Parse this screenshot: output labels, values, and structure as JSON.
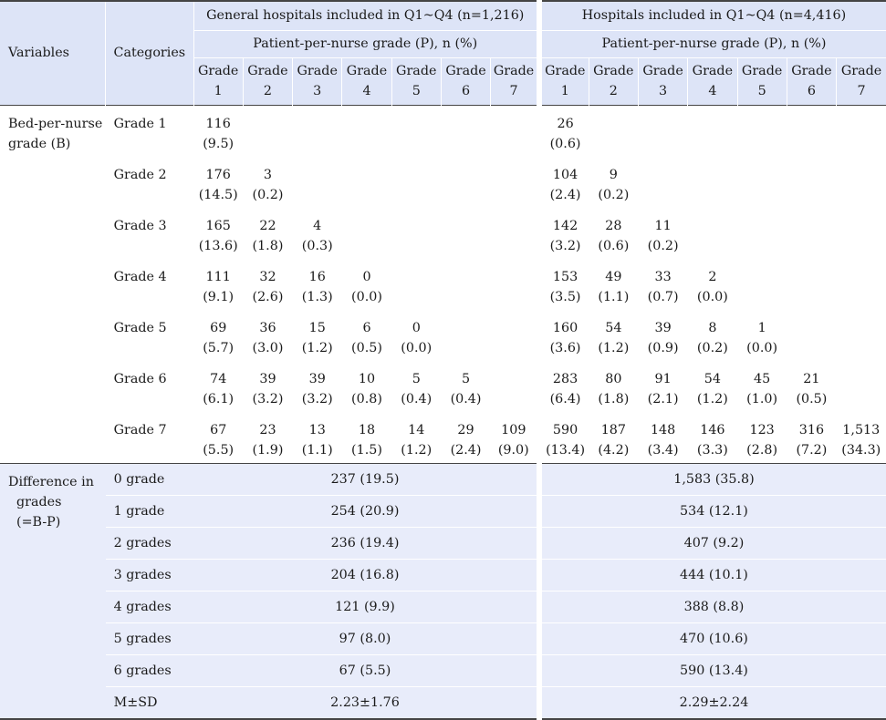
{
  "header": {
    "variables": "Variables",
    "categories": "Categories",
    "group1_title": "General hospitals included in Q1~Q4 (n=1,216)",
    "group2_title": "Hospitals included in Q1~Q4 (n=4,416)",
    "sub_title": "Patient-per-nurse grade (P), n (%)",
    "grade_word": "Grade",
    "grade_numbers": [
      "1",
      "2",
      "3",
      "4",
      "5",
      "6",
      "7"
    ]
  },
  "bed_section": {
    "variable": "Bed-per-nurse grade (B)",
    "rows": [
      {
        "category": "Grade 1",
        "g1": [
          [
            "116",
            "(9.5)"
          ]
        ],
        "g2": [
          [
            "26",
            "(0.6)"
          ]
        ]
      },
      {
        "category": "Grade 2",
        "g1": [
          [
            "176",
            "(14.5)"
          ],
          [
            "3",
            "(0.2)"
          ]
        ],
        "g2": [
          [
            "104",
            "(2.4)"
          ],
          [
            "9",
            "(0.2)"
          ]
        ]
      },
      {
        "category": "Grade 3",
        "g1": [
          [
            "165",
            "(13.6)"
          ],
          [
            "22",
            "(1.8)"
          ],
          [
            "4",
            "(0.3)"
          ]
        ],
        "g2": [
          [
            "142",
            "(3.2)"
          ],
          [
            "28",
            "(0.6)"
          ],
          [
            "11",
            "(0.2)"
          ]
        ]
      },
      {
        "category": "Grade 4",
        "g1": [
          [
            "111",
            "(9.1)"
          ],
          [
            "32",
            "(2.6)"
          ],
          [
            "16",
            "(1.3)"
          ],
          [
            "0",
            "(0.0)"
          ]
        ],
        "g2": [
          [
            "153",
            "(3.5)"
          ],
          [
            "49",
            "(1.1)"
          ],
          [
            "33",
            "(0.7)"
          ],
          [
            "2",
            "(0.0)"
          ]
        ]
      },
      {
        "category": "Grade 5",
        "g1": [
          [
            "69",
            "(5.7)"
          ],
          [
            "36",
            "(3.0)"
          ],
          [
            "15",
            "(1.2)"
          ],
          [
            "6",
            "(0.5)"
          ],
          [
            "0",
            "(0.0)"
          ]
        ],
        "g2": [
          [
            "160",
            "(3.6)"
          ],
          [
            "54",
            "(1.2)"
          ],
          [
            "39",
            "(0.9)"
          ],
          [
            "8",
            "(0.2)"
          ],
          [
            "1",
            "(0.0)"
          ]
        ]
      },
      {
        "category": "Grade 6",
        "g1": [
          [
            "74",
            "(6.1)"
          ],
          [
            "39",
            "(3.2)"
          ],
          [
            "39",
            "(3.2)"
          ],
          [
            "10",
            "(0.8)"
          ],
          [
            "5",
            "(0.4)"
          ],
          [
            "5",
            "(0.4)"
          ]
        ],
        "g2": [
          [
            "283",
            "(6.4)"
          ],
          [
            "80",
            "(1.8)"
          ],
          [
            "91",
            "(2.1)"
          ],
          [
            "54",
            "(1.2)"
          ],
          [
            "45",
            "(1.0)"
          ],
          [
            "21",
            "(0.5)"
          ]
        ]
      },
      {
        "category": "Grade 7",
        "g1": [
          [
            "67",
            "(5.5)"
          ],
          [
            "23",
            "(1.9)"
          ],
          [
            "13",
            "(1.1)"
          ],
          [
            "18",
            "(1.5)"
          ],
          [
            "14",
            "(1.2)"
          ],
          [
            "29",
            "(2.4)"
          ],
          [
            "109",
            "(9.0)"
          ]
        ],
        "g2": [
          [
            "590",
            "(13.4)"
          ],
          [
            "187",
            "(4.2)"
          ],
          [
            "148",
            "(3.4)"
          ],
          [
            "146",
            "(3.3)"
          ],
          [
            "123",
            "(2.8)"
          ],
          [
            "316",
            "(7.2)"
          ],
          [
            "1,513",
            "(34.3)"
          ]
        ]
      }
    ]
  },
  "diff_section": {
    "variable_lines": [
      "Difference in",
      "grades",
      "(=B-P)"
    ],
    "rows": [
      {
        "category": "0 grade",
        "g1": "237 (19.5)",
        "g2": "1,583 (35.8)"
      },
      {
        "category": "1 grade",
        "g1": "254 (20.9)",
        "g2": "534 (12.1)"
      },
      {
        "category": "2 grades",
        "g1": "236 (19.4)",
        "g2": "407 (9.2)"
      },
      {
        "category": "3 grades",
        "g1": "204 (16.8)",
        "g2": "444 (10.1)"
      },
      {
        "category": "4 grades",
        "g1": "121 (9.9)",
        "g2": "388 (8.8)"
      },
      {
        "category": "5 grades",
        "g1": "97 (8.0)",
        "g2": "470 (10.6)"
      },
      {
        "category": "6 grades",
        "g1": "67 (5.5)",
        "g2": "590 (13.4)"
      },
      {
        "category": "M±SD",
        "g1": "2.23±1.76",
        "g2": "2.29±2.24"
      }
    ]
  },
  "colors": {
    "header_bg": "#dde4f7",
    "diff_bg": "#e8ecfa",
    "rule": "#444444"
  }
}
